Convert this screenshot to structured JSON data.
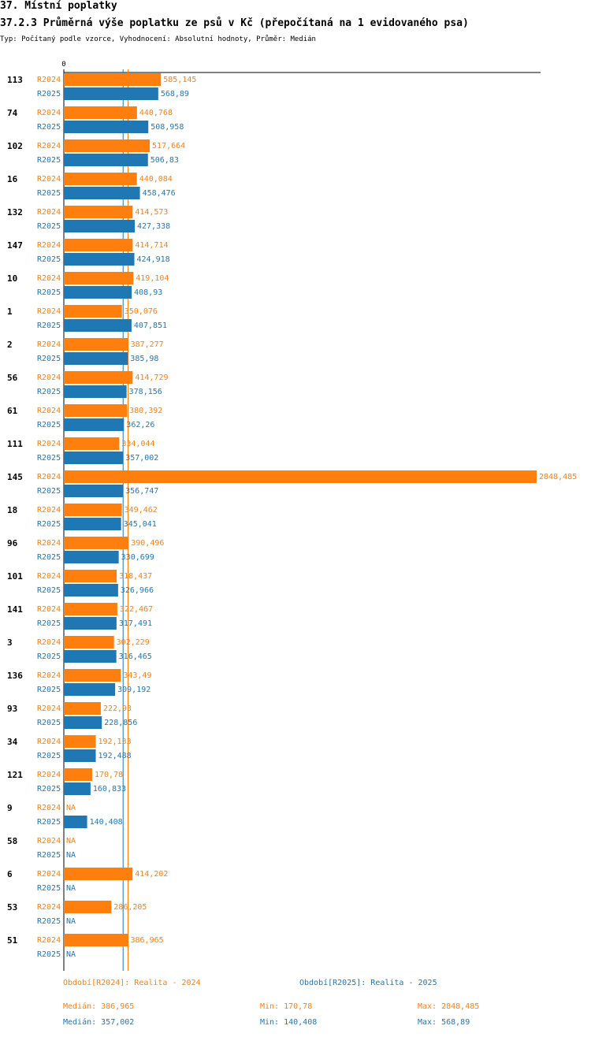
{
  "header": {
    "section": "37. Místní poplatky",
    "title": "37.2.3 Průměrná výše poplatku ze psů v Kč (přepočítaná na 1 evidovaného psa)",
    "subtitle": "Typ: Počítaný podle vzorce, Vyhodnocení: Absolutní hodnoty, Průměr: Medián"
  },
  "chart_data": {
    "type": "bar",
    "orientation": "horizontal",
    "axis_zero_label": "0",
    "xlim": [
      0,
      2848.485
    ],
    "categories": [
      "113",
      "74",
      "102",
      "16",
      "132",
      "147",
      "10",
      "1",
      "2",
      "56",
      "61",
      "111",
      "145",
      "18",
      "96",
      "101",
      "141",
      "3",
      "136",
      "93",
      "34",
      "121",
      "9",
      "58",
      "6",
      "53",
      "51"
    ],
    "series": [
      {
        "name": "R2024",
        "color": "#ff7f0e",
        "values": [
          585.145,
          440.768,
          517.664,
          440.084,
          414.573,
          414.714,
          419.104,
          350.076,
          387.277,
          414.729,
          380.392,
          334.044,
          2848.485,
          349.462,
          390.496,
          318.437,
          322.467,
          302.229,
          343.49,
          222.93,
          192.133,
          170.78,
          null,
          null,
          414.202,
          286.205,
          386.965
        ],
        "labels": [
          "585,145",
          "440,768",
          "517,664",
          "440,084",
          "414,573",
          "414,714",
          "419,104",
          "350,076",
          "387,277",
          "414,729",
          "380,392",
          "334,044",
          "2848,485",
          "349,462",
          "390,496",
          "318,437",
          "322,467",
          "302,229",
          "343,49",
          "222,93",
          "192,133",
          "170,78",
          "NA",
          "NA",
          "414,202",
          "286,205",
          "386,965"
        ]
      },
      {
        "name": "R2025",
        "color": "#1f77b4",
        "values": [
          568.89,
          508.958,
          506.83,
          458.476,
          427.338,
          424.918,
          408.93,
          407.851,
          385.98,
          378.156,
          362.26,
          357.002,
          356.747,
          345.041,
          330.699,
          326.966,
          317.491,
          316.465,
          309.192,
          228.856,
          192.488,
          160.833,
          140.408,
          null,
          null,
          null,
          null
        ],
        "labels": [
          "568,89",
          "508,958",
          "506,83",
          "458,476",
          "427,338",
          "424,918",
          "408,93",
          "407,851",
          "385,98",
          "378,156",
          "362,26",
          "357,002",
          "356,747",
          "345,041",
          "330,699",
          "326,966",
          "317,491",
          "316,465",
          "309,192",
          "228,856",
          "192,488",
          "160,833",
          "140,408",
          "NA",
          "NA",
          "NA",
          "NA"
        ]
      }
    ],
    "medians": {
      "R2024": 386.965,
      "R2025": 357.002
    }
  },
  "legend": {
    "r2024": "Období[R2024]: Realita - 2024",
    "r2025": "Období[R2025]: Realita - 2025"
  },
  "stats": {
    "r2024": {
      "median": "Medián: 386,965",
      "min": "Min: 170,78",
      "max": "Max: 2848,485"
    },
    "r2025": {
      "median": "Medián: 357,002",
      "min": "Min: 140,408",
      "max": "Max: 568,89"
    }
  }
}
